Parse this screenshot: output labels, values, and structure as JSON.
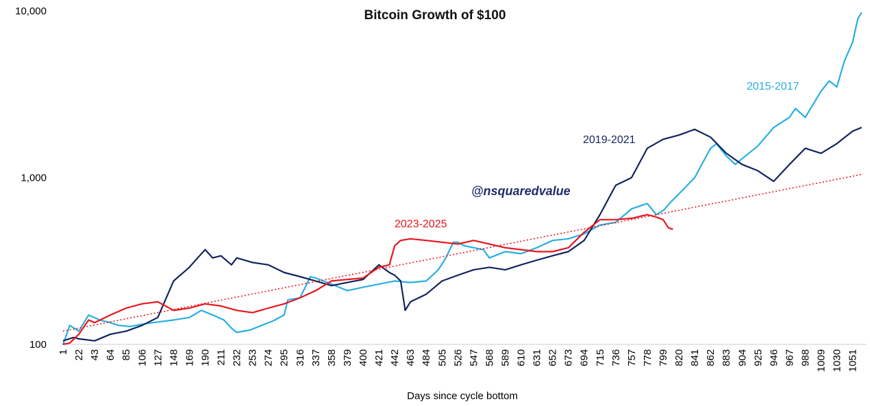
{
  "chart_data": {
    "type": "line",
    "title": "Bitcoin Growth of $100",
    "xlabel": "Days since cycle bottom",
    "ylabel": "",
    "y_scale": "log",
    "ylim": [
      100,
      10000
    ],
    "xlim": [
      1,
      1065
    ],
    "y_tick_labels": [
      "100",
      "1,000",
      "10,000"
    ],
    "y_tick_values": [
      100,
      1000,
      10000
    ],
    "x_tick_values": [
      1,
      22,
      43,
      64,
      85,
      106,
      127,
      148,
      169,
      190,
      211,
      232,
      253,
      274,
      295,
      316,
      337,
      358,
      379,
      400,
      421,
      442,
      463,
      484,
      505,
      526,
      547,
      568,
      589,
      610,
      631,
      652,
      673,
      694,
      715,
      736,
      757,
      778,
      799,
      820,
      841,
      862,
      883,
      904,
      925,
      946,
      967,
      988,
      1009,
      1030,
      1051
    ],
    "grid": false,
    "legend": "inline labels",
    "watermark": "@nsquaredvalue",
    "series": [
      {
        "name": "2015-2017",
        "color": "#27aee3",
        "x": [
          1,
          10,
          22,
          35,
          50,
          64,
          75,
          90,
          106,
          120,
          148,
          169,
          185,
          200,
          215,
          225,
          232,
          250,
          265,
          280,
          295,
          300,
          316,
          330,
          337,
          358,
          379,
          400,
          421,
          442,
          463,
          484,
          500,
          510,
          520,
          526,
          535,
          547,
          560,
          568,
          589,
          610,
          631,
          652,
          673,
          694,
          715,
          736,
          757,
          778,
          790,
          800,
          810,
          820,
          841,
          862,
          870,
          883,
          895,
          904,
          925,
          946,
          967,
          975,
          988,
          1009,
          1020,
          1030,
          1040,
          1051,
          1058,
          1063
        ],
        "y": [
          100,
          130,
          120,
          150,
          140,
          135,
          130,
          128,
          132,
          135,
          140,
          145,
          160,
          150,
          140,
          125,
          118,
          122,
          130,
          138,
          150,
          185,
          190,
          255,
          250,
          230,
          210,
          220,
          230,
          240,
          235,
          240,
          280,
          330,
          410,
          410,
          390,
          380,
          370,
          330,
          360,
          350,
          380,
          420,
          430,
          460,
          520,
          540,
          650,
          700,
          600,
          640,
          720,
          800,
          1000,
          1500,
          1600,
          1350,
          1200,
          1300,
          1550,
          2000,
          2300,
          2600,
          2300,
          3300,
          3800,
          3500,
          5000,
          6500,
          9000,
          9800
        ]
      },
      {
        "name": "2019-2021",
        "color": "#12235e",
        "x": [
          1,
          15,
          22,
          43,
          64,
          85,
          106,
          127,
          148,
          169,
          180,
          190,
          200,
          211,
          225,
          232,
          253,
          274,
          295,
          316,
          337,
          358,
          379,
          400,
          421,
          435,
          442,
          450,
          456,
          463,
          484,
          505,
          526,
          547,
          568,
          589,
          610,
          631,
          652,
          673,
          694,
          715,
          736,
          757,
          778,
          799,
          820,
          841,
          862,
          883,
          904,
          925,
          946,
          967,
          988,
          1009,
          1030,
          1051,
          1063
        ],
        "y": [
          105,
          110,
          108,
          105,
          115,
          120,
          130,
          145,
          240,
          290,
          330,
          370,
          330,
          340,
          300,
          330,
          310,
          300,
          270,
          255,
          240,
          225,
          235,
          245,
          300,
          270,
          260,
          240,
          160,
          180,
          200,
          240,
          260,
          280,
          290,
          280,
          300,
          320,
          340,
          360,
          420,
          600,
          900,
          1000,
          1500,
          1700,
          1800,
          1950,
          1750,
          1400,
          1200,
          1100,
          950,
          1200,
          1500,
          1400,
          1600,
          1900,
          2000
        ]
      },
      {
        "name": "2023-2025",
        "color": "#e8141c",
        "x": [
          1,
          10,
          22,
          35,
          43,
          64,
          85,
          106,
          127,
          148,
          169,
          190,
          211,
          232,
          253,
          274,
          295,
          316,
          337,
          358,
          379,
          400,
          421,
          435,
          442,
          450,
          463,
          484,
          505,
          526,
          547,
          568,
          589,
          610,
          631,
          652,
          673,
          694,
          715,
          736,
          757,
          778,
          790,
          799,
          806,
          812
        ],
        "y": [
          100,
          102,
          115,
          140,
          135,
          150,
          165,
          175,
          180,
          160,
          165,
          175,
          170,
          160,
          155,
          165,
          175,
          190,
          210,
          240,
          245,
          250,
          290,
          300,
          390,
          420,
          430,
          420,
          410,
          400,
          420,
          400,
          380,
          370,
          360,
          360,
          380,
          470,
          560,
          560,
          570,
          600,
          580,
          560,
          500,
          490
        ]
      },
      {
        "name": "",
        "color": "#e8141c",
        "style": "dotted",
        "x": [
          1,
          1065
        ],
        "y": [
          120,
          1050
        ]
      }
    ]
  }
}
